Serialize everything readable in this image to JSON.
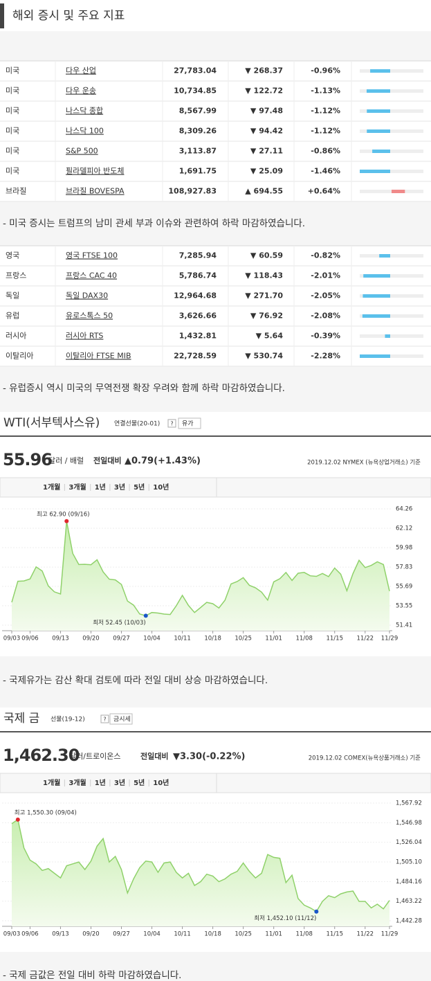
{
  "header": {
    "title": "해외 증시 및 주요 지표"
  },
  "us_table": {
    "rows": [
      {
        "country": "미국",
        "name": "다우 산업",
        "value": "27,783.04",
        "change": "▼ 268.37",
        "pct": -0.96,
        "pct_label": "-0.96%"
      },
      {
        "country": "미국",
        "name": "다우 운송",
        "value": "10,734.85",
        "change": "▼ 122.72",
        "pct": -1.13,
        "pct_label": "-1.13%"
      },
      {
        "country": "미국",
        "name": "나스닥 종합",
        "value": "8,567.99",
        "change": "▼ 97.48",
        "pct": -1.12,
        "pct_label": "-1.12%"
      },
      {
        "country": "미국",
        "name": "나스닥 100",
        "value": "8,309.26",
        "change": "▼ 94.42",
        "pct": -1.12,
        "pct_label": "-1.12%"
      },
      {
        "country": "미국",
        "name": "S&P 500",
        "value": "3,113.87",
        "change": "▼ 27.11",
        "pct": -0.86,
        "pct_label": "-0.86%"
      },
      {
        "country": "미국",
        "name": "필라델피아 반도체",
        "value": "1,691.75",
        "change": "▼ 25.09",
        "pct": -1.46,
        "pct_label": "-1.46%"
      },
      {
        "country": "브라질",
        "name": "브라질 BOVESPA",
        "value": "108,927.83",
        "change": "▲ 694.55",
        "pct": 0.64,
        "pct_label": "+0.64%"
      }
    ]
  },
  "us_note": "- 미국 증시는 트럼프의 남미 관세 부과 이슈와 관련하여 하락 마감하였습니다.",
  "eu_table": {
    "rows": [
      {
        "country": "영국",
        "name": "영국 FTSE 100",
        "value": "7,285.94",
        "change": "▼ 60.59",
        "pct": -0.82,
        "pct_label": "-0.82%"
      },
      {
        "country": "프랑스",
        "name": "프랑스 CAC 40",
        "value": "5,786.74",
        "change": "▼ 118.43",
        "pct": -2.01,
        "pct_label": "-2.01%"
      },
      {
        "country": "독일",
        "name": "독일 DAX30",
        "value": "12,964.68",
        "change": "▼ 271.70",
        "pct": -2.05,
        "pct_label": "-2.05%"
      },
      {
        "country": "유럽",
        "name": "유로스톡스 50",
        "value": "3,626.66",
        "change": "▼ 76.92",
        "pct": -2.08,
        "pct_label": "-2.08%"
      },
      {
        "country": "러시아",
        "name": "러시아 RTS",
        "value": "1,432.81",
        "change": "▼ 5.64",
        "pct": -0.39,
        "pct_label": "-0.39%"
      },
      {
        "country": "이탈리아",
        "name": "이탈리아 FTSE MIB",
        "value": "22,728.59",
        "change": "▼ 530.74",
        "pct": -2.28,
        "pct_label": "-2.28%"
      }
    ]
  },
  "eu_note": "- 유럽증시 역시 미국의 무역전쟁 확장 우려와 함께 하락 마감하였습니다.",
  "chart_data": [
    {
      "type": "line",
      "title": "WTI(서부텍사스유)",
      "subtitle": "연결선물(20-01)",
      "help": "?",
      "button": "유가",
      "price": "55.96",
      "unit": "달러 / 배럴",
      "compare": "전일대비",
      "change": "▲0.79(+1.43%)",
      "source": "2019.12.02 NYMEX (뉴욕상업거래소) 기준",
      "tabs": [
        "1개월",
        "3개월",
        "1년",
        "3년",
        "5년",
        "10년"
      ],
      "annotations": {
        "high": "최고 62.90 (09/16)",
        "low": "최저 52.45 (10/03)"
      },
      "color": "#8fd16a",
      "price_color": "#e0282e",
      "categories": [
        "09/03",
        null,
        null,
        "09/06",
        null,
        null,
        null,
        null,
        "09/13",
        null,
        null,
        null,
        null,
        "09/20",
        null,
        null,
        null,
        null,
        "09/27",
        null,
        null,
        null,
        null,
        "10/04",
        null,
        null,
        null,
        null,
        "10/11",
        null,
        null,
        null,
        null,
        "10/18",
        null,
        null,
        null,
        null,
        "10/25",
        null,
        null,
        null,
        null,
        "11/01",
        null,
        null,
        null,
        null,
        "11/08",
        null,
        null,
        null,
        null,
        "11/15",
        null,
        null,
        null,
        null,
        "11/22",
        null,
        null,
        null,
        "11/29"
      ],
      "series": [
        {
          "name": "WTI",
          "values": [
            53.94,
            56.26,
            56.3,
            56.52,
            57.85,
            57.4,
            55.75,
            55.09,
            54.85,
            62.9,
            59.34,
            58.11,
            58.13,
            58.09,
            58.64,
            57.29,
            56.49,
            56.41,
            55.91,
            54.07,
            53.62,
            52.64,
            52.45,
            52.81,
            52.75,
            52.63,
            52.59,
            53.55,
            54.7,
            53.59,
            52.81,
            53.36,
            53.93,
            53.78,
            53.31,
            54.16,
            55.97,
            56.23,
            56.66,
            55.81,
            55.54,
            55.06,
            54.18,
            56.2,
            56.54,
            57.23,
            56.35,
            57.15,
            57.24,
            56.86,
            56.8,
            57.12,
            56.77,
            57.72,
            57.05,
            55.21,
            57.11,
            58.58,
            57.77,
            58.01,
            58.41,
            58.11,
            55.17
          ]
        }
      ],
      "ylim": [
        51.41,
        64.26
      ],
      "yticks": [
        64.26,
        62.12,
        59.98,
        57.83,
        55.69,
        53.55,
        51.41
      ],
      "grid": true
    },
    {
      "type": "line",
      "title": "국제 금",
      "subtitle": "선물(19-12)",
      "help": "?",
      "button": "금시세",
      "price": "1,462.30",
      "unit": "달러/트로이온스",
      "compare": "전일대비",
      "change": "▼3.30(-0.22%)",
      "source": "2019.12.02 COMEX(뉴욕상품거래소) 기준",
      "tabs": [
        "1개월",
        "3개월",
        "1년",
        "3년",
        "5년",
        "10년"
      ],
      "annotations": {
        "high": "최고 1,550.30 (09/04)",
        "low": "최저 1,452.10 (11/12)"
      },
      "color": "#8fd16a",
      "price_color": "#1a56c8",
      "categories": [
        "09/03",
        null,
        null,
        "09/06",
        null,
        null,
        null,
        null,
        "09/13",
        null,
        null,
        null,
        null,
        "09/20",
        null,
        null,
        null,
        null,
        "09/27",
        null,
        null,
        null,
        null,
        "10/04",
        null,
        null,
        null,
        null,
        "10/11",
        null,
        null,
        null,
        null,
        "10/18",
        null,
        null,
        null,
        null,
        "10/25",
        null,
        null,
        null,
        null,
        "11/01",
        null,
        null,
        null,
        null,
        "11/08",
        null,
        null,
        null,
        null,
        "11/15",
        null,
        null,
        null,
        null,
        "11/22",
        null,
        null,
        null,
        "11/29"
      ],
      "series": [
        {
          "name": "금",
          "values": [
            1546,
            1550.3,
            1520,
            1507,
            1503,
            1496,
            1498,
            1493,
            1488,
            1501,
            1503,
            1505,
            1497,
            1506,
            1522,
            1530,
            1505,
            1511,
            1497,
            1472,
            1487,
            1499,
            1506,
            1505,
            1494,
            1504,
            1505,
            1494,
            1488,
            1493,
            1480,
            1484,
            1492,
            1490,
            1484,
            1487,
            1492,
            1495,
            1504,
            1495,
            1488,
            1493,
            1513,
            1510,
            1509,
            1483,
            1491,
            1466,
            1459,
            1456,
            1452.1,
            1463,
            1469,
            1467,
            1471,
            1473,
            1474,
            1463,
            1463,
            1456,
            1460,
            1455,
            1464
          ]
        }
      ],
      "ylim": [
        1442.28,
        1567.92
      ],
      "yticks": [
        {
          "value": 1567.92,
          "label": "1,567.92"
        },
        {
          "value": 1546.98,
          "label": "1,546.98"
        },
        {
          "value": 1526.04,
          "label": "1,526.04"
        },
        {
          "value": 1505.1,
          "label": "1,505.10"
        },
        {
          "value": 1484.16,
          "label": "1,484.16"
        },
        {
          "value": 1463.22,
          "label": "1,463.22"
        },
        {
          "value": 1442.28,
          "label": "1,442.28"
        }
      ],
      "grid": true
    }
  ],
  "oil_note": "- 국제유가는 감산 확대 검토에 따라 전일 대비 상승 마감하였습니다.",
  "gold_note": "- 국제 금값은 전일 대비 하락 마감하였습니다."
}
